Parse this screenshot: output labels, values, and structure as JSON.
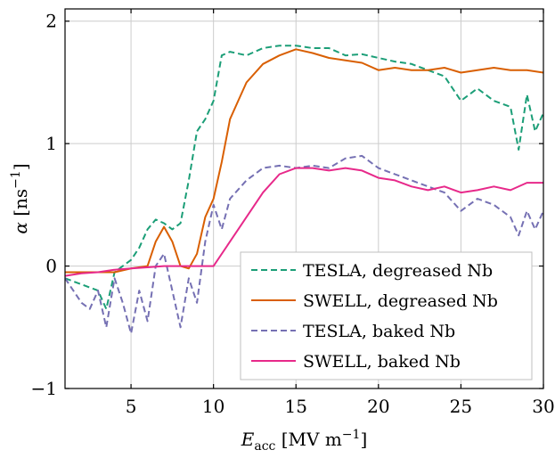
{
  "chart_data": {
    "type": "line",
    "title": "",
    "xlabel_main": "E",
    "xlabel_sub": "acc",
    "xlabel_unit": "MV m",
    "xlabel_exp": "−1",
    "ylabel_main": "α",
    "ylabel_unit": "ns",
    "ylabel_exp": "−1",
    "xlim": [
      1,
      30
    ],
    "ylim": [
      -1,
      2.1
    ],
    "x_ticks": [
      5,
      10,
      15,
      20,
      25,
      30
    ],
    "x_tick_labels": [
      "5",
      "10",
      "15",
      "20",
      "25",
      "30"
    ],
    "y_ticks": [
      -1,
      0,
      1,
      2
    ],
    "y_tick_labels": [
      "−1",
      "0",
      "1",
      "2"
    ],
    "grid": true,
    "legend_position": "bottom-right",
    "series": [
      {
        "name": "TESLA, degreased Nb",
        "color": "#1b9e77",
        "style": "dashed",
        "x": [
          1,
          2,
          3,
          3.5,
          4,
          4.5,
          5,
          5.5,
          6,
          6.5,
          7,
          7.5,
          8,
          8.5,
          9,
          9.5,
          10,
          10.5,
          11,
          12,
          13,
          14,
          15,
          16,
          17,
          18,
          19,
          20,
          21,
          22,
          23,
          24,
          25,
          26,
          27,
          28,
          28.5,
          29,
          29.5,
          30
        ],
        "y": [
          -0.1,
          -0.15,
          -0.2,
          -0.35,
          -0.05,
          0.0,
          0.05,
          0.15,
          0.3,
          0.38,
          0.35,
          0.3,
          0.35,
          0.7,
          1.1,
          1.2,
          1.35,
          1.72,
          1.75,
          1.72,
          1.78,
          1.8,
          1.8,
          1.78,
          1.78,
          1.72,
          1.73,
          1.7,
          1.67,
          1.65,
          1.6,
          1.55,
          1.35,
          1.45,
          1.35,
          1.3,
          0.95,
          1.4,
          1.1,
          1.25
        ]
      },
      {
        "name": "SWELL, degreased Nb",
        "color": "#d95f02",
        "style": "solid",
        "x": [
          1,
          2,
          3,
          4,
          5,
          6,
          6.5,
          7,
          7.5,
          8,
          8.5,
          9,
          9.5,
          10,
          10.5,
          11,
          11.5,
          12,
          13,
          14,
          15,
          16,
          17,
          18,
          19,
          20,
          21,
          22,
          23,
          24,
          25,
          26,
          27,
          28,
          29,
          30
        ],
        "y": [
          -0.05,
          -0.05,
          -0.05,
          -0.05,
          -0.02,
          0.0,
          0.2,
          0.32,
          0.2,
          0.0,
          -0.02,
          0.1,
          0.4,
          0.55,
          0.85,
          1.2,
          1.35,
          1.5,
          1.65,
          1.72,
          1.77,
          1.74,
          1.7,
          1.68,
          1.66,
          1.6,
          1.62,
          1.6,
          1.6,
          1.62,
          1.58,
          1.6,
          1.62,
          1.6,
          1.6,
          1.58
        ]
      },
      {
        "name": "TESLA, baked Nb",
        "color": "#7570b3",
        "style": "dashed",
        "x": [
          1,
          1.5,
          2,
          2.5,
          3,
          3.5,
          4,
          4.5,
          5,
          5.5,
          6,
          6.5,
          7,
          7.5,
          8,
          8.5,
          9,
          9.5,
          10,
          10.5,
          11,
          12,
          13,
          14,
          15,
          16,
          17,
          18,
          19,
          20,
          21,
          22,
          23,
          24,
          25,
          26,
          27,
          28,
          28.5,
          29,
          29.5,
          30
        ],
        "y": [
          -0.1,
          -0.2,
          -0.3,
          -0.35,
          -0.2,
          -0.5,
          -0.1,
          -0.3,
          -0.55,
          -0.2,
          -0.45,
          0.0,
          0.1,
          -0.2,
          -0.5,
          -0.1,
          -0.3,
          0.2,
          0.5,
          0.3,
          0.55,
          0.7,
          0.8,
          0.82,
          0.8,
          0.82,
          0.8,
          0.88,
          0.9,
          0.8,
          0.75,
          0.7,
          0.65,
          0.6,
          0.45,
          0.55,
          0.5,
          0.4,
          0.25,
          0.45,
          0.3,
          0.45
        ]
      },
      {
        "name": "SWELL, baked Nb",
        "color": "#e7298a",
        "style": "solid",
        "x": [
          1,
          2,
          3,
          4,
          5,
          6,
          7,
          8,
          9,
          10,
          11,
          12,
          13,
          14,
          15,
          16,
          17,
          18,
          19,
          20,
          21,
          22,
          23,
          24,
          25,
          26,
          27,
          28,
          29,
          30
        ],
        "y": [
          -0.08,
          -0.06,
          -0.05,
          -0.03,
          -0.02,
          -0.01,
          0.0,
          0.0,
          0.0,
          0.0,
          0.2,
          0.4,
          0.6,
          0.75,
          0.8,
          0.8,
          0.78,
          0.8,
          0.78,
          0.72,
          0.7,
          0.65,
          0.62,
          0.65,
          0.6,
          0.62,
          0.65,
          0.62,
          0.68,
          0.68
        ]
      }
    ]
  }
}
